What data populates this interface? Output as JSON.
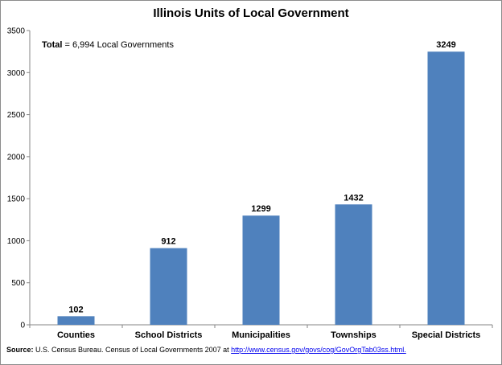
{
  "chart_data": {
    "type": "bar",
    "title": "Illinois Units of Local Government",
    "categories": [
      "Counties",
      "School Districts",
      "Municipalities",
      "Townships",
      "Special Districts"
    ],
    "values": [
      102,
      912,
      1299,
      1432,
      3249
    ],
    "data_labels": [
      "102",
      "912",
      "1299",
      "1432",
      "3249"
    ],
    "ylim": [
      0,
      3500
    ],
    "yticks": [
      0,
      500,
      1000,
      1500,
      2000,
      2500,
      3000,
      3500
    ],
    "bar_color": "#4f81bd",
    "grid": false,
    "legend": "none",
    "annotation": {
      "label": "Total",
      "text": " = 6,994 Local Governments"
    }
  },
  "source": {
    "label": "Source:",
    "text": " U.S. Census Bureau. Census of Local Governments 2007 at ",
    "link_text": "http://www.census.gov/govs/cog/GovOrgTab03ss.html."
  }
}
